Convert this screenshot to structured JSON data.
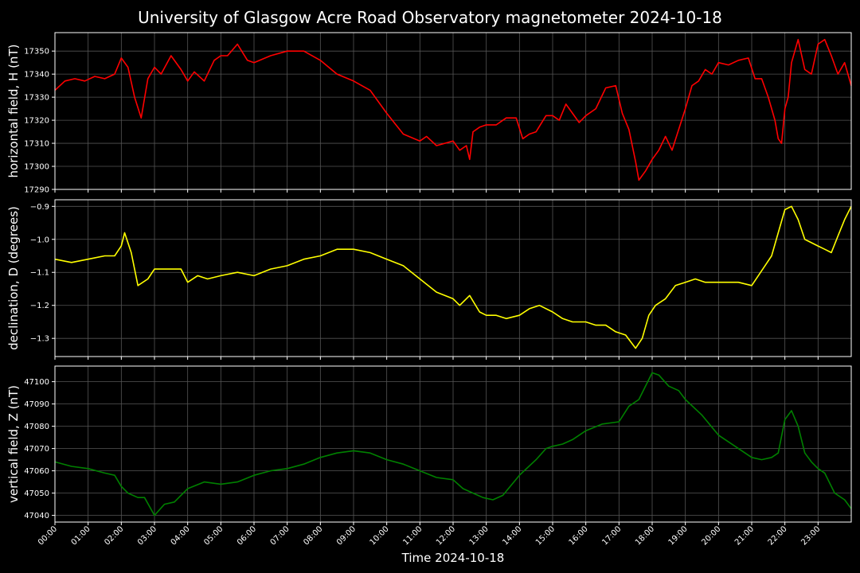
{
  "title": "University of Glasgow Acre Road Observatory magnetometer 2024-10-18",
  "xlabel": "Time 2024-10-18",
  "x_ticks": [
    "00:00",
    "01:00",
    "02:00",
    "03:00",
    "04:00",
    "05:00",
    "06:00",
    "07:00",
    "08:00",
    "09:00",
    "10:00",
    "11:00",
    "12:00",
    "13:00",
    "14:00",
    "15:00",
    "16:00",
    "17:00",
    "18:00",
    "19:00",
    "20:00",
    "21:00",
    "22:00",
    "23:00"
  ],
  "colors": {
    "background": "#000000",
    "axes": "#ffffff",
    "grid": "#555555",
    "H": "#ff0000",
    "D": "#ffff00",
    "Z": "#008000"
  },
  "chart_data": [
    {
      "type": "line",
      "ylabel": "horizontal field, H (nT)",
      "ylim": [
        17290,
        17358
      ],
      "yticks": [
        17290,
        17300,
        17310,
        17320,
        17330,
        17340,
        17350
      ],
      "xlim": [
        0,
        24
      ],
      "grid": true,
      "series": [
        {
          "color": "#ff0000",
          "x": [
            0,
            0.3,
            0.6,
            0.9,
            1.2,
            1.5,
            1.8,
            2.0,
            2.2,
            2.4,
            2.6,
            2.8,
            3.0,
            3.2,
            3.5,
            3.8,
            4.0,
            4.2,
            4.5,
            4.8,
            5.0,
            5.2,
            5.5,
            5.8,
            6.0,
            6.5,
            7.0,
            7.5,
            8.0,
            8.5,
            9.0,
            9.5,
            10.0,
            10.5,
            11.0,
            11.2,
            11.5,
            12.0,
            12.2,
            12.4,
            12.5,
            12.6,
            12.8,
            13.0,
            13.3,
            13.6,
            13.9,
            14.1,
            14.3,
            14.5,
            14.8,
            15.0,
            15.2,
            15.4,
            15.6,
            15.8,
            16.0,
            16.3,
            16.6,
            16.9,
            17.1,
            17.3,
            17.5,
            17.6,
            17.8,
            18.0,
            18.2,
            18.4,
            18.6,
            18.8,
            19.0,
            19.2,
            19.4,
            19.6,
            19.8,
            20.0,
            20.3,
            20.6,
            20.9,
            21.1,
            21.3,
            21.5,
            21.7,
            21.8,
            21.9,
            22.0,
            22.1,
            22.2,
            22.4,
            22.6,
            22.8,
            23.0,
            23.2,
            23.4,
            23.6,
            23.8,
            24.0
          ],
          "y": [
            17333,
            17337,
            17338,
            17337,
            17339,
            17338,
            17340,
            17347,
            17343,
            17330,
            17321,
            17338,
            17343,
            17340,
            17348,
            17342,
            17337,
            17341,
            17337,
            17346,
            17348,
            17348,
            17353,
            17346,
            17345,
            17348,
            17350,
            17350,
            17346,
            17340,
            17337,
            17333,
            17323,
            17314,
            17311,
            17313,
            17309,
            17311,
            17307,
            17309,
            17303,
            17315,
            17317,
            17318,
            17318,
            17321,
            17321,
            17312,
            17314,
            17315,
            17322,
            17322,
            17320,
            17327,
            17323,
            17319,
            17322,
            17325,
            17334,
            17335,
            17323,
            17316,
            17302,
            17294,
            17298,
            17303,
            17307,
            17313,
            17307,
            17316,
            17325,
            17335,
            17337,
            17342,
            17340,
            17345,
            17344,
            17346,
            17347,
            17338,
            17338,
            17330,
            17320,
            17312,
            17310,
            17325,
            17330,
            17345,
            17355,
            17342,
            17340,
            17353,
            17355,
            17348,
            17340,
            17345,
            17335
          ]
        }
      ]
    },
    {
      "type": "line",
      "ylabel": "declination, D (degrees)",
      "ylim": [
        -1.355,
        -0.88
      ],
      "yticks": [
        -1.3,
        -1.2,
        -1.1,
        -1.0,
        -0.9
      ],
      "xlim": [
        0,
        24
      ],
      "grid": true,
      "series": [
        {
          "color": "#ffff00",
          "x": [
            0,
            0.5,
            1.0,
            1.5,
            1.8,
            2.0,
            2.1,
            2.3,
            2.5,
            2.8,
            3.0,
            3.5,
            3.8,
            4.0,
            4.3,
            4.6,
            5.0,
            5.5,
            6.0,
            6.5,
            7.0,
            7.5,
            8.0,
            8.5,
            9.0,
            9.5,
            10.0,
            10.5,
            11.0,
            11.5,
            12.0,
            12.2,
            12.5,
            12.8,
            13.0,
            13.3,
            13.6,
            14.0,
            14.3,
            14.6,
            15.0,
            15.3,
            15.6,
            16.0,
            16.3,
            16.6,
            16.9,
            17.2,
            17.5,
            17.7,
            17.9,
            18.1,
            18.4,
            18.7,
            19.0,
            19.3,
            19.6,
            20.0,
            20.3,
            20.6,
            21.0,
            21.2,
            21.4,
            21.6,
            21.8,
            22.0,
            22.2,
            22.4,
            22.6,
            23.0,
            23.2,
            23.4,
            23.6,
            23.8,
            24.0
          ],
          "y": [
            -1.06,
            -1.07,
            -1.06,
            -1.05,
            -1.05,
            -1.02,
            -0.98,
            -1.04,
            -1.14,
            -1.12,
            -1.09,
            -1.09,
            -1.09,
            -1.13,
            -1.11,
            -1.12,
            -1.11,
            -1.1,
            -1.11,
            -1.09,
            -1.08,
            -1.06,
            -1.05,
            -1.03,
            -1.03,
            -1.04,
            -1.06,
            -1.08,
            -1.12,
            -1.16,
            -1.18,
            -1.2,
            -1.17,
            -1.22,
            -1.23,
            -1.23,
            -1.24,
            -1.23,
            -1.21,
            -1.2,
            -1.22,
            -1.24,
            -1.25,
            -1.25,
            -1.26,
            -1.26,
            -1.28,
            -1.29,
            -1.33,
            -1.3,
            -1.23,
            -1.2,
            -1.18,
            -1.14,
            -1.13,
            -1.12,
            -1.13,
            -1.13,
            -1.13,
            -1.13,
            -1.14,
            -1.11,
            -1.08,
            -1.05,
            -0.98,
            -0.91,
            -0.9,
            -0.94,
            -1.0,
            -1.02,
            -1.03,
            -1.04,
            -0.99,
            -0.94,
            -0.9
          ]
        }
      ]
    },
    {
      "type": "line",
      "ylabel": "vertical field, Z (nT)",
      "ylim": [
        47037,
        47107
      ],
      "yticks": [
        47040,
        47050,
        47060,
        47070,
        47080,
        47090,
        47100
      ],
      "xlim": [
        0,
        24
      ],
      "grid": true,
      "series": [
        {
          "color": "#008000",
          "x": [
            0,
            0.5,
            1.0,
            1.5,
            1.8,
            2.0,
            2.2,
            2.5,
            2.7,
            3.0,
            3.3,
            3.6,
            4.0,
            4.5,
            5.0,
            5.5,
            6.0,
            6.5,
            7.0,
            7.5,
            8.0,
            8.5,
            9.0,
            9.5,
            10.0,
            10.5,
            11.0,
            11.5,
            12.0,
            12.3,
            12.6,
            12.9,
            13.2,
            13.5,
            14.0,
            14.5,
            14.8,
            15.0,
            15.3,
            15.6,
            16.0,
            16.5,
            17.0,
            17.3,
            17.6,
            18.0,
            18.2,
            18.5,
            18.8,
            19.0,
            19.5,
            20.0,
            20.5,
            21.0,
            21.3,
            21.6,
            21.8,
            22.0,
            22.2,
            22.4,
            22.6,
            22.8,
            23.0,
            23.2,
            23.5,
            23.8,
            24.0
          ],
          "y": [
            47064,
            47062,
            47061,
            47059,
            47058,
            47053,
            47050,
            47048,
            47048,
            47040,
            47045,
            47046,
            47052,
            47055,
            47054,
            47055,
            47058,
            47060,
            47061,
            47063,
            47066,
            47068,
            47069,
            47068,
            47065,
            47063,
            47060,
            47057,
            47056,
            47052,
            47050,
            47048,
            47047,
            47049,
            47058,
            47065,
            47070,
            47071,
            47072,
            47074,
            47078,
            47081,
            47082,
            47089,
            47092,
            47104,
            47103,
            47098,
            47096,
            47092,
            47085,
            47076,
            47071,
            47066,
            47065,
            47066,
            47068,
            47083,
            47087,
            47080,
            47068,
            47064,
            47061,
            47059,
            47050,
            47047,
            47043
          ]
        }
      ]
    }
  ]
}
